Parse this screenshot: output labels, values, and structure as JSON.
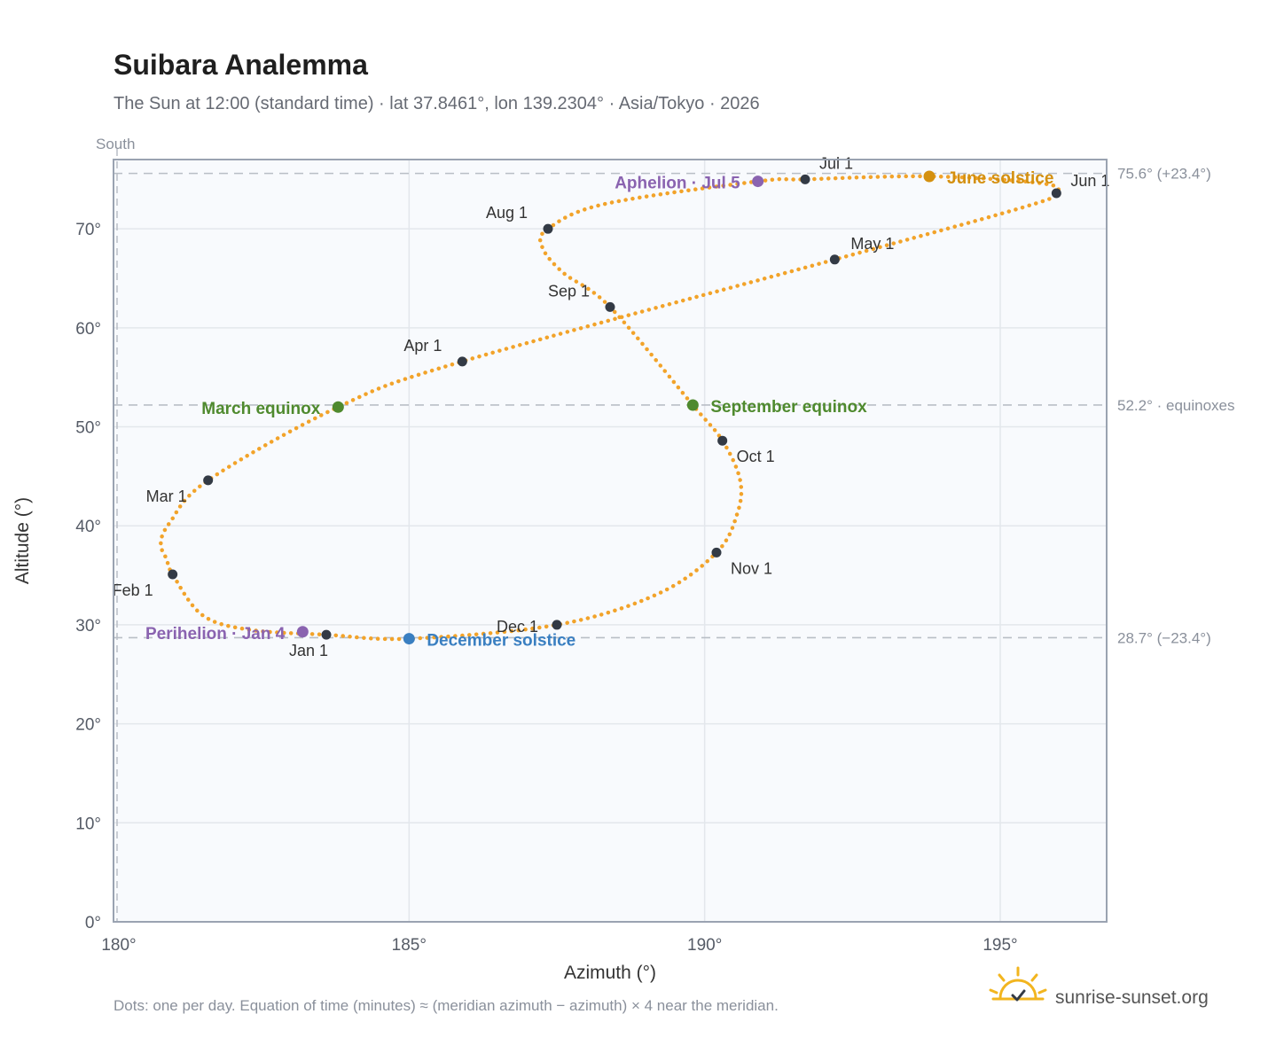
{
  "title": "Suibara Analemma",
  "subtitle": "The Sun at 12:00 (standard time) · lat 37.8461°, lon 139.2304° · Asia/Tokyo · 2026",
  "south_label": "South",
  "footnote": "Dots: one per day. Equation of time (minutes) ≈ (meridian azimuth − azimuth) × 4 near the meridian.",
  "brand": "sunrise-sunset.org",
  "icons": {
    "brand": "sun-check-icon"
  },
  "colors": {
    "path": "#f2a32a",
    "month_marker": "#333a45",
    "equinox": "#4f8a2e",
    "june_solstice": "#d4900f",
    "december_solstice": "#3a7fc1",
    "apsis": "#8a63b0",
    "reference_line": "#b9bec6",
    "plot_bg": "#f8fafd",
    "plot_border": "#9aa3b1"
  },
  "chart_data": {
    "type": "scatter",
    "title": "Suibara Analemma",
    "xlabel": "Azimuth (°)",
    "ylabel": "Altitude (°)",
    "xlim": [
      180,
      196.8
    ],
    "ylim": [
      0,
      77
    ],
    "x_ticks": [
      180,
      185,
      190,
      195
    ],
    "x_tick_labels": [
      "180°",
      "185°",
      "190°",
      "195°"
    ],
    "y_ticks": [
      0,
      10,
      20,
      30,
      40,
      50,
      60,
      70
    ],
    "y_tick_labels": [
      "0°",
      "10°",
      "20°",
      "30°",
      "40°",
      "50°",
      "60°",
      "70°"
    ],
    "grid": true,
    "meridian_azimuth": 180,
    "reference_lines": [
      {
        "y": 75.6,
        "label": "75.6° (+23.4°)"
      },
      {
        "y": 52.2,
        "label": "52.2° · equinoxes"
      },
      {
        "y": 28.7,
        "label": "28.7° (−23.4°)"
      }
    ],
    "path_key_days": [
      {
        "x": 183.6,
        "y": 29.0
      },
      {
        "x": 182.3,
        "y": 29.5
      },
      {
        "x": 181.5,
        "y": 31.0
      },
      {
        "x": 181.0,
        "y": 35.1
      },
      {
        "x": 180.9,
        "y": 36.6
      },
      {
        "x": 180.8,
        "y": 38.2
      },
      {
        "x": 180.95,
        "y": 40.3
      },
      {
        "x": 181.6,
        "y": 44.6
      },
      {
        "x": 183.8,
        "y": 52.0
      },
      {
        "x": 185.9,
        "y": 56.6
      },
      {
        "x": 192.2,
        "y": 66.9
      },
      {
        "x": 195.4,
        "y": 72.2
      },
      {
        "x": 195.95,
        "y": 73.6
      },
      {
        "x": 195.7,
        "y": 74.6
      },
      {
        "x": 193.8,
        "y": 75.3
      },
      {
        "x": 191.7,
        "y": 75.0
      },
      {
        "x": 190.9,
        "y": 74.8
      },
      {
        "x": 188.3,
        "y": 72.5
      },
      {
        "x": 187.35,
        "y": 70.0
      },
      {
        "x": 187.25,
        "y": 68.2
      },
      {
        "x": 187.6,
        "y": 65.6
      },
      {
        "x": 188.4,
        "y": 62.1
      },
      {
        "x": 189.8,
        "y": 52.2
      },
      {
        "x": 190.3,
        "y": 48.6
      },
      {
        "x": 190.6,
        "y": 44.6
      },
      {
        "x": 190.55,
        "y": 41.2
      },
      {
        "x": 190.2,
        "y": 37.3
      },
      {
        "x": 189.2,
        "y": 33.1
      },
      {
        "x": 187.5,
        "y": 30.0
      },
      {
        "x": 185.0,
        "y": 28.6
      },
      {
        "x": 183.6,
        "y": 29.0
      }
    ],
    "month_markers": [
      {
        "label": "Jan 1",
        "x": 183.6,
        "y": 29.0
      },
      {
        "label": "Feb 1",
        "x": 181.0,
        "y": 35.1
      },
      {
        "label": "Mar 1",
        "x": 181.6,
        "y": 44.6
      },
      {
        "label": "Apr 1",
        "x": 185.9,
        "y": 56.6
      },
      {
        "label": "May 1",
        "x": 192.2,
        "y": 66.9
      },
      {
        "label": "Jun 1",
        "x": 195.95,
        "y": 73.6
      },
      {
        "label": "Jul 1",
        "x": 191.7,
        "y": 75.0
      },
      {
        "label": "Aug 1",
        "x": 187.35,
        "y": 70.0
      },
      {
        "label": "Sep 1",
        "x": 188.4,
        "y": 62.1
      },
      {
        "label": "Oct 1",
        "x": 190.3,
        "y": 48.6
      },
      {
        "label": "Nov 1",
        "x": 190.2,
        "y": 37.3
      },
      {
        "label": "Dec 1",
        "x": 187.5,
        "y": 30.0
      }
    ],
    "events": [
      {
        "label": "March equinox",
        "x": 183.8,
        "y": 52.0,
        "kind": "equinox"
      },
      {
        "label": "September equinox",
        "x": 189.8,
        "y": 52.2,
        "kind": "equinox"
      },
      {
        "label": "June solstice",
        "x": 193.8,
        "y": 75.3,
        "kind": "june_solstice"
      },
      {
        "label": "December solstice",
        "x": 185.0,
        "y": 28.6,
        "kind": "december_solstice"
      },
      {
        "label": "Aphelion · Jul 5",
        "x": 190.9,
        "y": 74.8,
        "kind": "apsis"
      },
      {
        "label": "Perihelion · Jan 4",
        "x": 183.2,
        "y": 29.3,
        "kind": "apsis"
      }
    ]
  }
}
